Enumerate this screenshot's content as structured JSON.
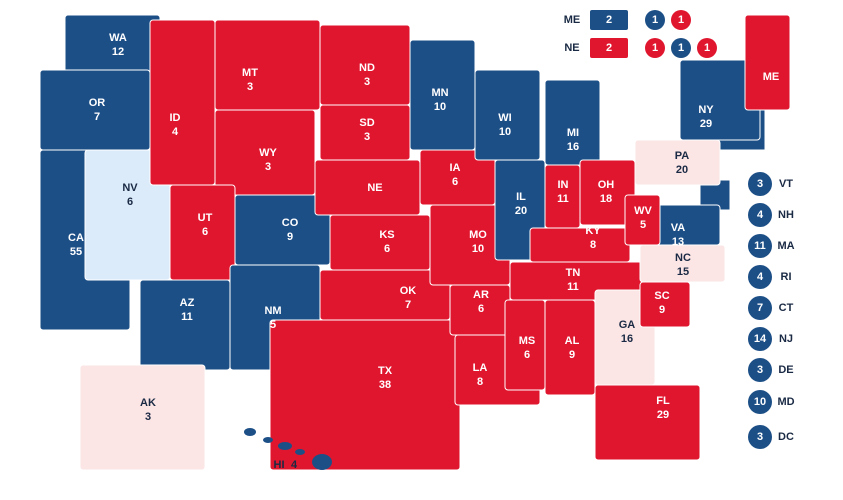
{
  "states": [
    {
      "abbr": "WA",
      "votes": 12,
      "color": "#1d4f87"
    },
    {
      "abbr": "OR",
      "votes": 7,
      "color": "#1d4f87"
    },
    {
      "abbr": "CA",
      "votes": 55,
      "color": "#1d4f87"
    },
    {
      "abbr": "NV",
      "votes": 6,
      "color": "#dcebfa"
    },
    {
      "abbr": "MT",
      "votes": 3,
      "color": "#e0162f"
    },
    {
      "abbr": "ID",
      "votes": 4,
      "color": "#e0162f"
    },
    {
      "abbr": "WY",
      "votes": 3,
      "color": "#e0162f"
    },
    {
      "abbr": "UT",
      "votes": 6,
      "color": "#e0162f"
    },
    {
      "abbr": "CO",
      "votes": 9,
      "color": "#1d4f87"
    },
    {
      "abbr": "AZ",
      "votes": 11,
      "color": "#1d4f87"
    },
    {
      "abbr": "NM",
      "votes": 5,
      "color": "#1d4f87"
    },
    {
      "abbr": "ND",
      "votes": 3,
      "color": "#e0162f"
    },
    {
      "abbr": "SD",
      "votes": 3,
      "color": "#e0162f"
    },
    {
      "abbr": "NE",
      "color": "#e0162f"
    },
    {
      "abbr": "KS",
      "votes": 6,
      "color": "#e0162f"
    },
    {
      "abbr": "TX",
      "votes": 38,
      "color": "#e0162f"
    },
    {
      "abbr": "OK",
      "votes": 7,
      "color": "#e0162f"
    },
    {
      "abbr": "MN",
      "votes": 10,
      "color": "#1d4f87"
    },
    {
      "abbr": "IA",
      "votes": 6,
      "color": "#e0162f"
    },
    {
      "abbr": "MO",
      "votes": 10,
      "color": "#e0162f"
    },
    {
      "abbr": "AR",
      "votes": 6,
      "color": "#e0162f"
    },
    {
      "abbr": "LA",
      "votes": 8,
      "color": "#e0162f"
    },
    {
      "abbr": "WI",
      "votes": 10,
      "color": "#1d4f87"
    },
    {
      "abbr": "IL",
      "votes": 20,
      "color": "#1d4f87"
    },
    {
      "abbr": "MI",
      "votes": 16,
      "color": "#1d4f87"
    },
    {
      "abbr": "IN",
      "votes": 11,
      "color": "#e0162f"
    },
    {
      "abbr": "OH",
      "votes": 18,
      "color": "#e0162f"
    },
    {
      "abbr": "KY",
      "votes": 8,
      "color": "#e0162f"
    },
    {
      "abbr": "TN",
      "votes": 11,
      "color": "#e0162f"
    },
    {
      "abbr": "MS",
      "votes": 6,
      "color": "#e0162f"
    },
    {
      "abbr": "AL",
      "votes": 9,
      "color": "#e0162f"
    },
    {
      "abbr": "GA",
      "votes": 16,
      "color": "#fbe5e5"
    },
    {
      "abbr": "SC",
      "votes": 9,
      "color": "#e0162f"
    },
    {
      "abbr": "FL",
      "votes": 29,
      "color": "#e0162f"
    },
    {
      "abbr": "NC",
      "votes": 15,
      "color": "#fbe5e5"
    },
    {
      "abbr": "VA",
      "votes": 13,
      "color": "#1d4f87"
    },
    {
      "abbr": "WV",
      "votes": 5,
      "color": "#e0162f"
    },
    {
      "abbr": "PA",
      "votes": 20,
      "color": "#fbe5e5"
    },
    {
      "abbr": "NY",
      "votes": 29,
      "color": "#1d4f87"
    },
    {
      "abbr": "ME",
      "color": "#e0162f"
    },
    {
      "abbr": "AK",
      "votes": 3,
      "color": "#fbe5e5"
    },
    {
      "abbr": "HI",
      "votes": 4,
      "color": "#1d4f87"
    }
  ],
  "small_states": [
    {
      "abbr": "VT",
      "votes": 3,
      "color": "#1d4f87"
    },
    {
      "abbr": "NH",
      "votes": 4,
      "color": "#1d4f87"
    },
    {
      "abbr": "MA",
      "votes": 11,
      "color": "#1d4f87"
    },
    {
      "abbr": "RI",
      "votes": 4,
      "color": "#1d4f87"
    },
    {
      "abbr": "CT",
      "votes": 7,
      "color": "#1d4f87"
    },
    {
      "abbr": "NJ",
      "votes": 14,
      "color": "#1d4f87"
    },
    {
      "abbr": "DE",
      "votes": 3,
      "color": "#1d4f87"
    },
    {
      "abbr": "MD",
      "votes": 10,
      "color": "#1d4f87"
    },
    {
      "abbr": "DC",
      "votes": 3,
      "color": "#1d4f87"
    }
  ],
  "split_states": [
    {
      "abbr": "ME",
      "at_large": {
        "votes": 2,
        "color": "#1d4f87"
      },
      "districts": [
        {
          "votes": 1,
          "color": "#1d4f87"
        },
        {
          "votes": 1,
          "color": "#e0162f"
        }
      ]
    },
    {
      "abbr": "NE",
      "at_large": {
        "votes": 2,
        "color": "#e0162f"
      },
      "districts": [
        {
          "votes": 1,
          "color": "#e0162f"
        },
        {
          "votes": 1,
          "color": "#1d4f87"
        },
        {
          "votes": 1,
          "color": "#e0162f"
        }
      ]
    }
  ]
}
